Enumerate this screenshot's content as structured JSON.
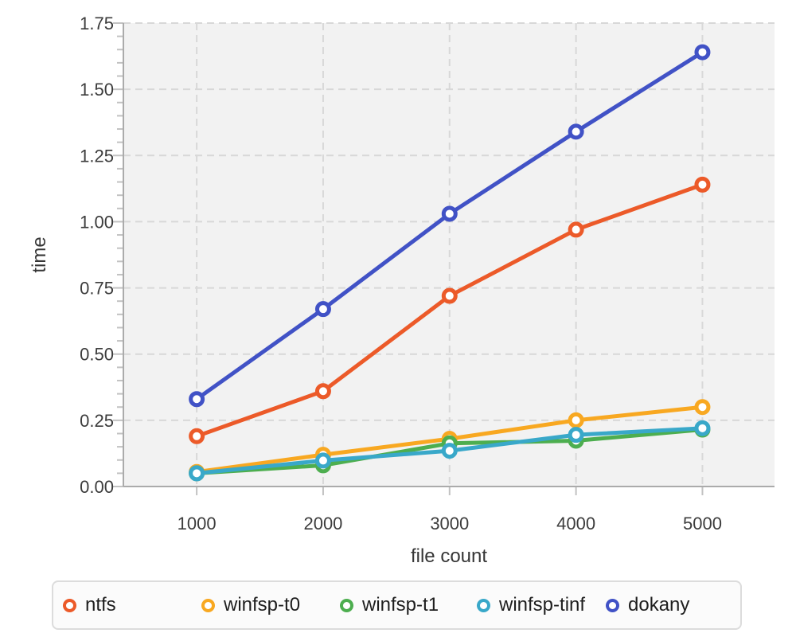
{
  "chart_data": {
    "type": "line",
    "title": "",
    "xlabel": "file count",
    "ylabel": "time",
    "x": [
      1000,
      2000,
      3000,
      4000,
      5000
    ],
    "series": [
      {
        "name": "ntfs",
        "color": "#ec5a29",
        "values": [
          0.19,
          0.36,
          0.72,
          0.97,
          1.14
        ]
      },
      {
        "name": "winfsp-t0",
        "color": "#f8a821",
        "values": [
          0.055,
          0.12,
          0.18,
          0.25,
          0.3
        ]
      },
      {
        "name": "winfsp-t1",
        "color": "#4dae4f",
        "values": [
          0.05,
          0.08,
          0.163,
          0.173,
          0.215
        ]
      },
      {
        "name": "winfsp-tinf",
        "color": "#39a8c9",
        "values": [
          0.05,
          0.098,
          0.135,
          0.195,
          0.22
        ]
      },
      {
        "name": "dokany",
        "color": "#4152c6",
        "values": [
          0.33,
          0.67,
          1.03,
          1.34,
          1.64
        ]
      }
    ],
    "xlim": [
      420,
      5570
    ],
    "ylim": [
      0,
      1.75
    ],
    "xticks": [
      1000,
      2000,
      3000,
      4000,
      5000
    ],
    "xtick_labels": [
      "1000",
      "2000",
      "3000",
      "4000",
      "5000"
    ],
    "yticks_major": [
      0,
      0.25,
      0.5,
      0.75,
      1.0,
      1.25,
      1.5,
      1.75
    ],
    "ytick_labels": [
      "0.00",
      "0.25",
      "0.50",
      "0.75",
      "1.00",
      "1.25",
      "1.50",
      "1.75"
    ],
    "y_minor_step": 0.05,
    "grid": true,
    "grid_style": "dashed",
    "marker": "open-circle",
    "legend_position": "bottom",
    "colors": {
      "plot_bg": "#f2f2f2",
      "grid": "#d8d8d8",
      "spine": "#ababab",
      "tick": "#c2c2c2",
      "tick_label": "#3c3c3c",
      "axis_label": "#363636",
      "legend_border": "#dcdcdc",
      "legend_bg": "#fbfbfb",
      "marker_fill": "#ffffff"
    }
  }
}
